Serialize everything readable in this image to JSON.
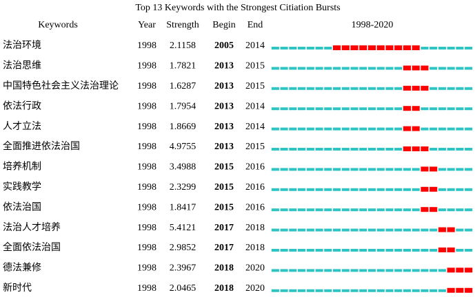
{
  "title": "Top 13 Keywords with the Strongest Citiation Bursts",
  "table": {
    "headers": [
      "Keywords",
      "Year",
      "Strength",
      "Begin",
      "End",
      "1998-2020"
    ],
    "rows": [
      [
        "法治环境",
        1998,
        2.1158,
        2005,
        2014
      ],
      [
        "法治思维",
        1998,
        1.7821,
        2013,
        2015
      ],
      [
        "中国特色社会主义法治理论",
        1998,
        1.6287,
        2013,
        2015
      ],
      [
        "依法行政",
        1998,
        1.7954,
        2013,
        2014
      ],
      [
        "人才立法",
        1998,
        1.8669,
        2013,
        2014
      ],
      [
        "全面推进依法治国",
        1998,
        4.9755,
        2013,
        2015
      ],
      [
        "培养机制",
        1998,
        3.4988,
        2015,
        2016
      ],
      [
        "实践教学",
        1998,
        2.3299,
        2015,
        2016
      ],
      [
        "依法治国",
        1998,
        1.8417,
        2015,
        2016
      ],
      [
        "法治人才培养",
        1998,
        5.4121,
        2017,
        2018
      ],
      [
        "全面依法治国",
        1998,
        2.9852,
        2017,
        2018
      ],
      [
        "德法兼修",
        1998,
        2.3967,
        2018,
        2020
      ],
      [
        "新时代",
        1998,
        2.0465,
        2018,
        2020
      ]
    ]
  }
}
